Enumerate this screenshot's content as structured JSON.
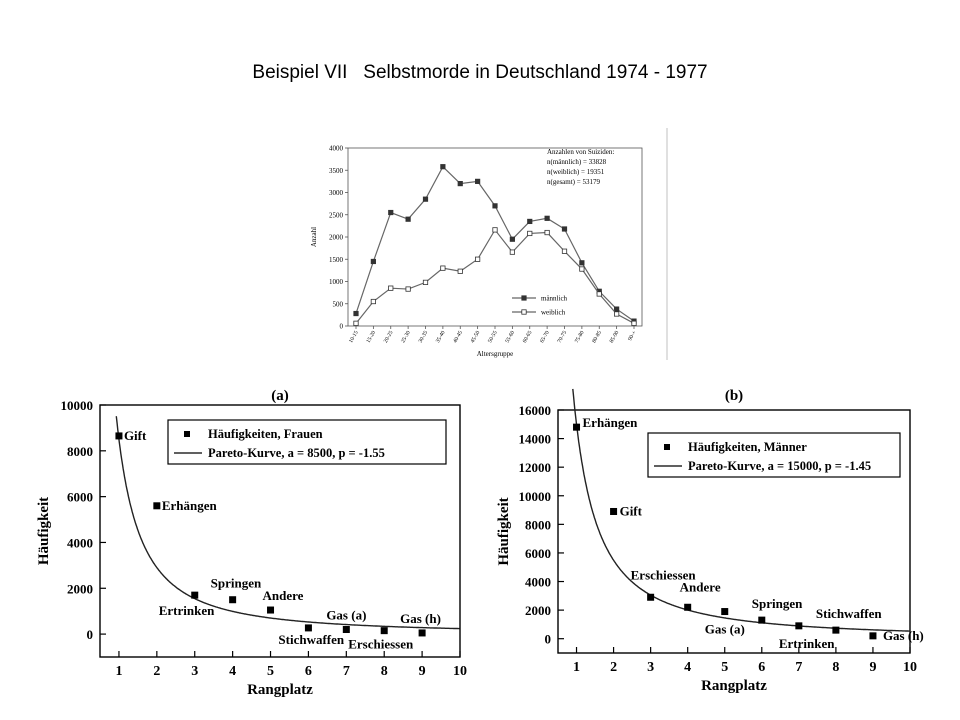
{
  "slide": {
    "title": "Beispiel VII   Selbstmorde in Deutschland 1974 - 1977"
  },
  "chart_data": [
    {
      "id": "age",
      "type": "line",
      "xlabel": "Altersgruppe",
      "ylabel": "Anzahl",
      "ylim": [
        0,
        4000
      ],
      "yticks": [
        0,
        500,
        1000,
        1500,
        2000,
        2500,
        3000,
        3500,
        4000
      ],
      "categories": [
        "10-15",
        "15-20",
        "20-25",
        "25-30",
        "30-35",
        "35-40",
        "40-45",
        "45-50",
        "50-55",
        "55-60",
        "60-65",
        "65-70",
        "70-75",
        "75-80",
        "80-85",
        "85-90",
        "90-+"
      ],
      "series": [
        {
          "name": "männlich",
          "marker": "filled-square",
          "values": [
            280,
            1450,
            2550,
            2400,
            2850,
            3580,
            3200,
            3250,
            2700,
            1950,
            2350,
            2420,
            2180,
            1420,
            780,
            380,
            110
          ]
        },
        {
          "name": "weiblich",
          "marker": "open-square",
          "values": [
            60,
            550,
            850,
            830,
            980,
            1300,
            1230,
            1500,
            2160,
            1660,
            2080,
            2100,
            1680,
            1280,
            720,
            270,
            60
          ]
        }
      ],
      "annotation": [
        "Anzahlen von Suiziden:",
        "n(männlich) = 33828",
        "n(weiblich) = 19351",
        "n(gesamt)   = 53179"
      ],
      "legend_position": "bottom-right"
    },
    {
      "id": "a",
      "panel_label": "(a)",
      "type": "scatter",
      "xlabel": "Rangplatz",
      "ylabel": "Häufigkeit",
      "xlim": [
        0.5,
        10
      ],
      "xticks": [
        1,
        2,
        3,
        4,
        5,
        6,
        7,
        8,
        9,
        10
      ],
      "ylim": [
        -1000,
        10000
      ],
      "yticks": [
        0,
        2000,
        4000,
        6000,
        8000,
        10000
      ],
      "series": [
        {
          "name": "Häufigkeiten, Frauen",
          "x": [
            1,
            2,
            3,
            4,
            5,
            6,
            7,
            8,
            9
          ],
          "y": [
            8650,
            5600,
            1700,
            1500,
            1050,
            270,
            200,
            150,
            50
          ],
          "labels": [
            "Gift",
            "Erhängen",
            "Ertrinken",
            "Springen",
            "Andere",
            "Stichwaffen",
            "Gas (a)",
            "Erschiessen",
            "Gas (h)"
          ]
        }
      ],
      "curve": {
        "name": "Pareto-Kurve, a = 8500, p = -1.55",
        "a": 8500,
        "p": -1.55
      },
      "legend_position": "top-right"
    },
    {
      "id": "b",
      "panel_label": "(b)",
      "type": "scatter",
      "xlabel": "Rangplatz",
      "ylabel": "Häufigkeit",
      "xlim": [
        0.5,
        10
      ],
      "xticks": [
        1,
        2,
        3,
        4,
        5,
        6,
        7,
        8,
        9,
        10
      ],
      "ylim": [
        -1000,
        16000
      ],
      "yticks": [
        0,
        2000,
        4000,
        6000,
        8000,
        10000,
        12000,
        14000,
        16000
      ],
      "series": [
        {
          "name": "Häufigkeiten, Männer",
          "x": [
            1,
            2,
            3,
            4,
            5,
            6,
            7,
            8,
            9
          ],
          "y": [
            14800,
            8900,
            2900,
            2200,
            1900,
            1300,
            900,
            600,
            200
          ],
          "labels": [
            "Erhängen",
            "Gift",
            "Erschiessen",
            "Andere",
            "Gas (a)",
            "Springen",
            "Ertrinken",
            "Stichwaffen",
            "Gas (h)"
          ]
        }
      ],
      "curve": {
        "name": "Pareto-Kurve, a = 15000, p = -1.45",
        "a": 15000,
        "p": -1.45
      },
      "legend_position": "top-right"
    }
  ]
}
